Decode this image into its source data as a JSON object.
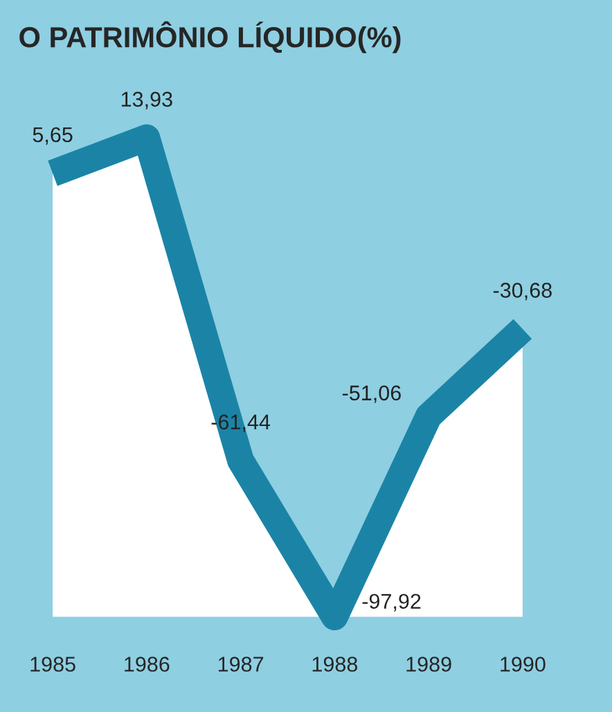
{
  "chart_data": {
    "type": "line",
    "title": "O PATRIMÔNIO LÍQUIDO(%)",
    "categories": [
      "1985",
      "1986",
      "1987",
      "1988",
      "1989",
      "1990"
    ],
    "series": [
      {
        "color": "#1b84a6",
        "values": [
          5.65,
          13.93,
          -61.44,
          -97.92,
          -51.06,
          -30.68
        ],
        "value_labels": [
          "5,65",
          "13,93",
          "-61,44",
          "-97,92",
          "-51,06",
          "-30,68"
        ]
      }
    ],
    "tick_labels": "x",
    "marker": "none",
    "line_style": "solid",
    "grid": false
  }
}
